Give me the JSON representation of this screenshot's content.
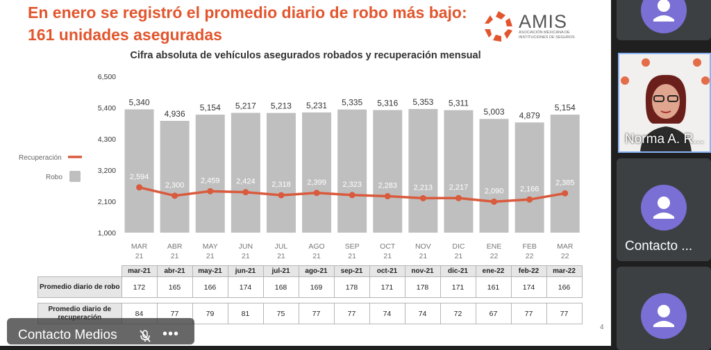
{
  "slide": {
    "title": "En enero se registró el promedio diario de robo más bajo: 161 unidades aseguradas",
    "logo_name": "AMIS",
    "logo_subtitle": "ASOCIACIÓN MEXICANA DE INSTITUCIONES DE SEGUROS",
    "page_number": "4"
  },
  "chart_data": {
    "type": "bar",
    "title": "Cifra absoluta de vehículos asegurados robados y recuperación mensual",
    "categories": [
      [
        "MAR",
        "21"
      ],
      [
        "ABR",
        "21"
      ],
      [
        "MAY",
        "21"
      ],
      [
        "JUN",
        "21"
      ],
      [
        "JUL",
        "21"
      ],
      [
        "AGO",
        "21"
      ],
      [
        "SEP",
        "21"
      ],
      [
        "OCT",
        "21"
      ],
      [
        "NOV",
        "21"
      ],
      [
        "DIC",
        "21"
      ],
      [
        "ENE",
        "22"
      ],
      [
        "FEB",
        "22"
      ],
      [
        "MAR",
        "22"
      ]
    ],
    "series": [
      {
        "name": "Robo",
        "kind": "bar",
        "color": "#bfbfbf",
        "values": [
          5340,
          4936,
          5154,
          5217,
          5213,
          5231,
          5335,
          5316,
          5353,
          5311,
          5003,
          4879,
          5154
        ],
        "labels": [
          "5,340",
          "4,936",
          "5,154",
          "5,217",
          "5,213",
          "5,231",
          "5,335",
          "5,316",
          "5,353",
          "5,311",
          "5,003",
          "4,879",
          "5,154"
        ]
      },
      {
        "name": "Recuperación",
        "kind": "line",
        "color": "#d95a3c",
        "values": [
          2594,
          2300,
          2459,
          2424,
          2318,
          2399,
          2323,
          2283,
          2213,
          2217,
          2090,
          2166,
          2385
        ],
        "labels": [
          "2,594",
          "2,300",
          "2,459",
          "2,424",
          "2,318",
          "2,399",
          "2,323",
          "2,283",
          "2,213",
          "2,217",
          "2,090",
          "2,166",
          "2,385"
        ]
      }
    ],
    "ylim": [
      1000,
      6500
    ],
    "yticks": [
      1000,
      2100,
      3200,
      4300,
      5400,
      6500
    ],
    "ytick_labels": [
      "1,000",
      "2,100",
      "3,200",
      "4,300",
      "5,400",
      "6,500"
    ],
    "legend_position": "left",
    "grid": false
  },
  "table": {
    "headers": [
      "mar-21",
      "abr-21",
      "may-21",
      "jun-21",
      "jul-21",
      "ago-21",
      "sep-21",
      "oct-21",
      "nov-21",
      "dic-21",
      "ene-22",
      "feb-22",
      "mar-22"
    ],
    "rows": [
      {
        "label": "Promedio diario de robo",
        "values": [
          "172",
          "165",
          "166",
          "174",
          "168",
          "169",
          "178",
          "171",
          "178",
          "171",
          "161",
          "174",
          "166"
        ]
      },
      {
        "label": "Promedio diario de recuperación",
        "values": [
          "84",
          "77",
          "79",
          "81",
          "75",
          "77",
          "77",
          "74",
          "74",
          "72",
          "67",
          "77",
          "77"
        ]
      }
    ]
  },
  "meeting": {
    "presenter_chip": "Contacto Medios",
    "more_glyph": "•••",
    "participants": [
      {
        "name": "",
        "type": "avatar"
      },
      {
        "name": "Norma A. R...",
        "type": "video"
      },
      {
        "name": "Contacto ...",
        "type": "avatar"
      },
      {
        "name": "",
        "type": "avatar"
      }
    ]
  },
  "colors": {
    "accent": "#e2552d",
    "bar": "#bfbfbf",
    "line": "#d95a3c",
    "avatar": "#7a6fd4"
  }
}
